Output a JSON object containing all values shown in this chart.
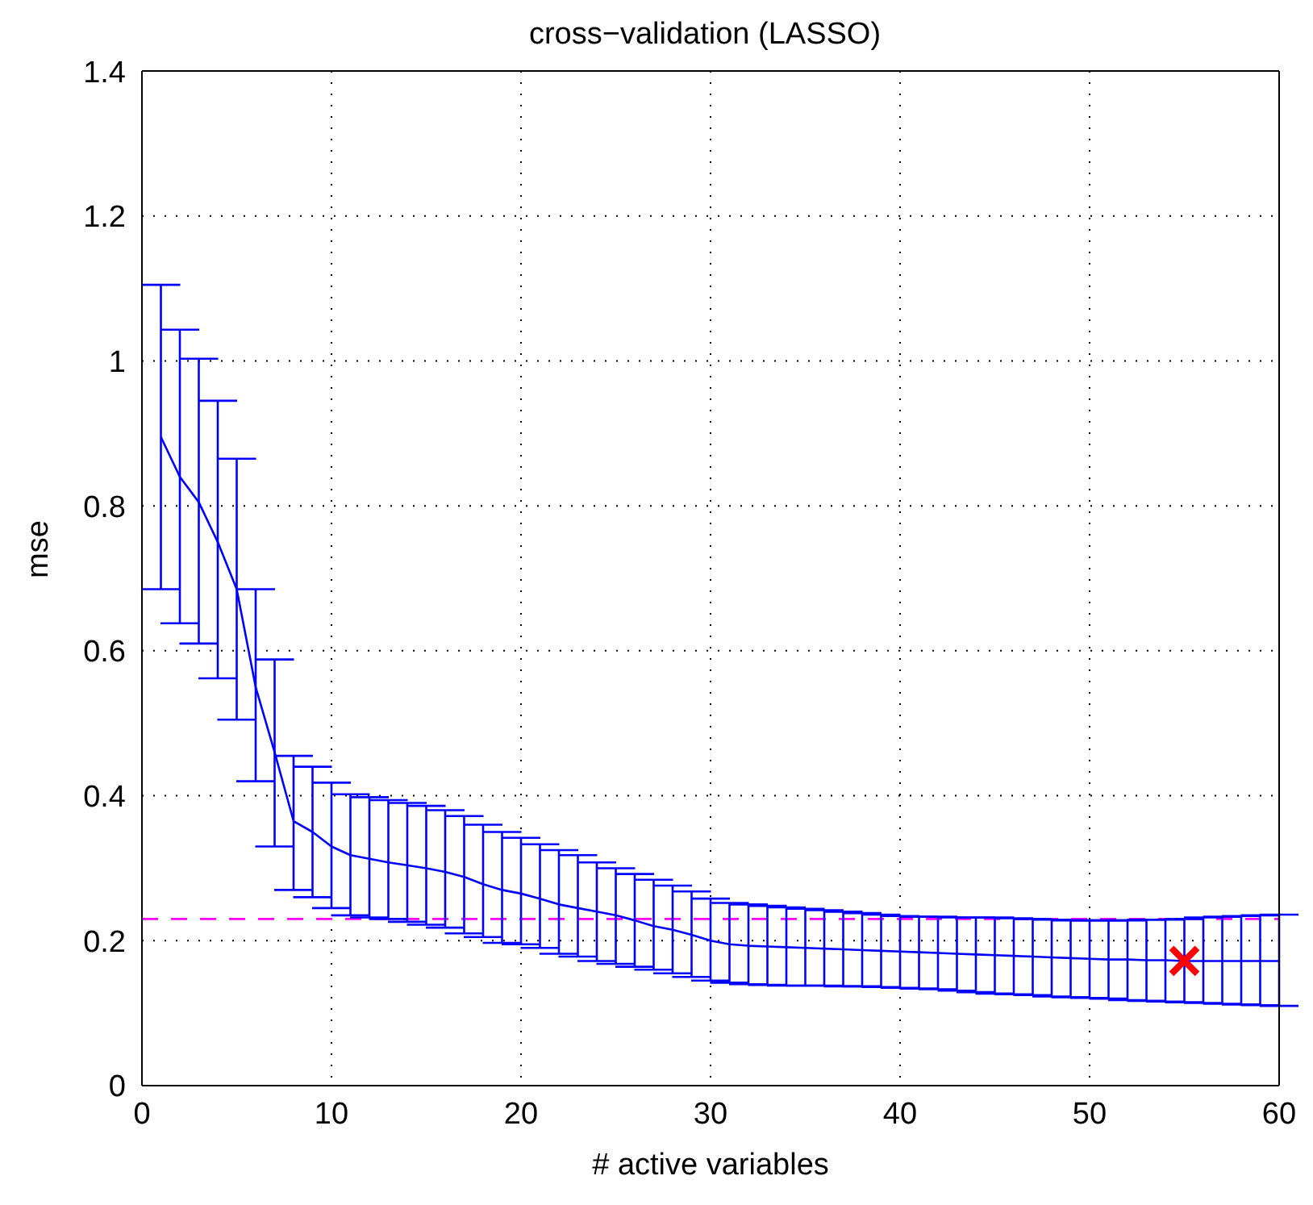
{
  "chart_data": {
    "type": "line",
    "title": "cross−validation (LASSO)",
    "xlabel": "# active variables",
    "ylabel": "mse",
    "xlim": [
      0,
      60
    ],
    "xticks": [
      0,
      10,
      20,
      30,
      40,
      50,
      60
    ],
    "ylim": [
      0,
      1.4
    ],
    "yticks": [
      0,
      0.2,
      0.4,
      0.6,
      0.8,
      1,
      1.2,
      1.4
    ],
    "grid": true,
    "series": [
      {
        "color": "#0000ff",
        "marker": "none",
        "x": [
          1,
          2,
          3,
          4,
          5,
          6,
          7,
          8,
          9,
          10,
          11,
          12,
          13,
          14,
          15,
          16,
          17,
          18,
          19,
          20,
          21,
          22,
          23,
          24,
          25,
          26,
          27,
          28,
          29,
          30,
          31,
          32,
          33,
          34,
          35,
          36,
          37,
          38,
          39,
          40,
          41,
          42,
          43,
          44,
          45,
          46,
          47,
          48,
          49,
          50,
          51,
          52,
          53,
          54,
          55,
          56,
          57,
          58,
          59,
          60
        ],
        "values": [
          0.895,
          0.84,
          0.805,
          0.75,
          0.685,
          0.55,
          0.46,
          0.365,
          0.35,
          0.33,
          0.318,
          0.313,
          0.308,
          0.304,
          0.3,
          0.295,
          0.288,
          0.278,
          0.27,
          0.265,
          0.258,
          0.25,
          0.245,
          0.24,
          0.235,
          0.228,
          0.22,
          0.215,
          0.208,
          0.2,
          0.195,
          0.193,
          0.192,
          0.191,
          0.19,
          0.189,
          0.188,
          0.187,
          0.186,
          0.185,
          0.184,
          0.183,
          0.182,
          0.181,
          0.18,
          0.179,
          0.178,
          0.177,
          0.176,
          0.175,
          0.174,
          0.174,
          0.173,
          0.173,
          0.172,
          0.172,
          0.172,
          0.172,
          0.172,
          0.172
        ],
        "errors": [
          [
            0.685,
            1.105
          ],
          [
            0.638,
            1.043
          ],
          [
            0.61,
            1.003
          ],
          [
            0.562,
            0.945
          ],
          [
            0.505,
            0.865
          ],
          [
            0.42,
            0.685
          ],
          [
            0.33,
            0.588
          ],
          [
            0.27,
            0.455
          ],
          [
            0.26,
            0.44
          ],
          [
            0.245,
            0.418
          ],
          [
            0.235,
            0.402
          ],
          [
            0.232,
            0.398
          ],
          [
            0.23,
            0.394
          ],
          [
            0.226,
            0.39
          ],
          [
            0.222,
            0.386
          ],
          [
            0.218,
            0.38
          ],
          [
            0.21,
            0.372
          ],
          [
            0.205,
            0.36
          ],
          [
            0.197,
            0.35
          ],
          [
            0.195,
            0.342
          ],
          [
            0.19,
            0.333
          ],
          [
            0.182,
            0.325
          ],
          [
            0.178,
            0.318
          ],
          [
            0.172,
            0.308
          ],
          [
            0.168,
            0.3
          ],
          [
            0.164,
            0.292
          ],
          [
            0.16,
            0.284
          ],
          [
            0.155,
            0.276
          ],
          [
            0.15,
            0.268
          ],
          [
            0.145,
            0.258
          ],
          [
            0.142,
            0.252
          ],
          [
            0.14,
            0.25
          ],
          [
            0.139,
            0.248
          ],
          [
            0.138,
            0.246
          ],
          [
            0.138,
            0.244
          ],
          [
            0.138,
            0.242
          ],
          [
            0.137,
            0.24
          ],
          [
            0.137,
            0.238
          ],
          [
            0.136,
            0.236
          ],
          [
            0.135,
            0.234
          ],
          [
            0.134,
            0.233
          ],
          [
            0.133,
            0.233
          ],
          [
            0.131,
            0.232
          ],
          [
            0.129,
            0.232
          ],
          [
            0.127,
            0.232
          ],
          [
            0.126,
            0.231
          ],
          [
            0.125,
            0.23
          ],
          [
            0.123,
            0.229
          ],
          [
            0.122,
            0.228
          ],
          [
            0.121,
            0.228
          ],
          [
            0.12,
            0.228
          ],
          [
            0.118,
            0.228
          ],
          [
            0.117,
            0.229
          ],
          [
            0.116,
            0.229
          ],
          [
            0.115,
            0.23
          ],
          [
            0.114,
            0.232
          ],
          [
            0.113,
            0.233
          ],
          [
            0.112,
            0.234
          ],
          [
            0.111,
            0.235
          ],
          [
            0.11,
            0.236
          ]
        ]
      },
      {
        "type": "scatter",
        "color": "#ff0000",
        "marker": "cross",
        "x": [
          55
        ],
        "values": [
          0.172
        ]
      }
    ],
    "ref_lines": [
      {
        "axis": "y",
        "value": 0.23,
        "color": "#ff00ff",
        "line_style": "dashed"
      }
    ]
  }
}
